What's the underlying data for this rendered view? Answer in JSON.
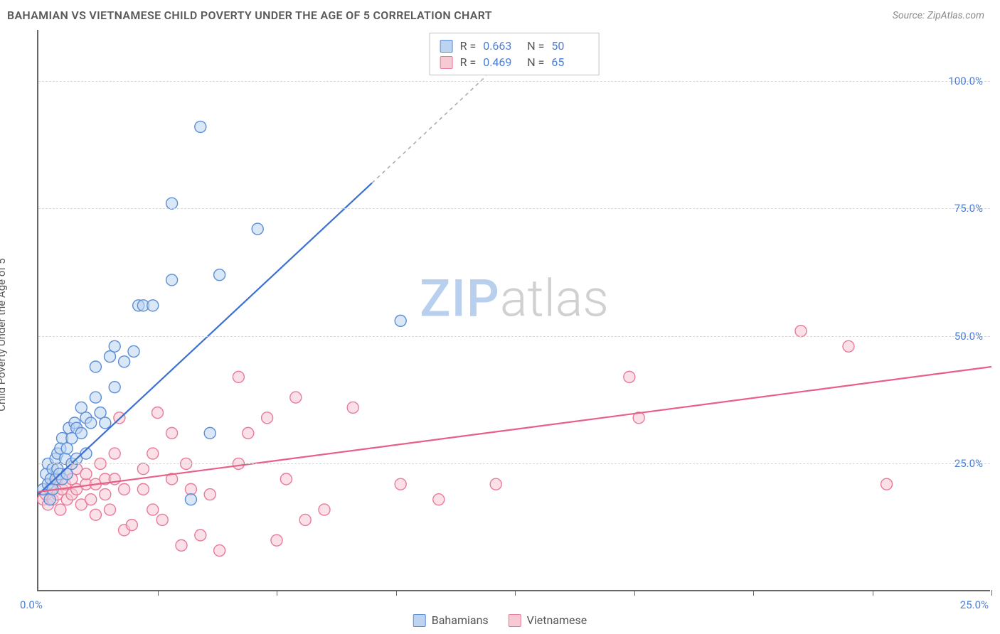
{
  "header": {
    "title": "BAHAMIAN VS VIETNAMESE CHILD POVERTY UNDER THE AGE OF 5 CORRELATION CHART",
    "source": "Source: ZipAtlas.com"
  },
  "axes": {
    "y_label": "Child Poverty Under the Age of 5",
    "y_ticks": [
      {
        "v": 25,
        "label": "25.0%"
      },
      {
        "v": 50,
        "label": "50.0%"
      },
      {
        "v": 75,
        "label": "75.0%"
      },
      {
        "v": 100,
        "label": "100.0%"
      }
    ],
    "x_ticks_at": [
      12.5,
      25,
      37.5,
      50,
      62.5,
      75,
      87.5,
      100
    ],
    "x_origin_label": "0.0%",
    "x_end_label": "25.0%",
    "xlim": [
      0,
      100
    ],
    "ylim": [
      0,
      110
    ]
  },
  "watermark": {
    "part1": "ZIP",
    "part2": "atlas"
  },
  "colors": {
    "series_a_fill": "#bcd4f0",
    "series_a_stroke": "#5b8ed6",
    "series_a_line": "#3b6fd1",
    "series_b_fill": "#f7c9d4",
    "series_b_stroke": "#e87a9a",
    "series_b_line": "#e85f87",
    "grid": "#d8d8d8",
    "axis": "#666666",
    "tick_text": "#4a7fd6",
    "body_text": "#5a5a5a"
  },
  "stats": {
    "rows": [
      {
        "swatch_fill": "#bcd4f0",
        "swatch_stroke": "#5b8ed6",
        "r_label": "R =",
        "r": "0.663",
        "n_label": "N =",
        "n": "50"
      },
      {
        "swatch_fill": "#f7c9d4",
        "swatch_stroke": "#e87a9a",
        "r_label": "R =",
        "r": "0.469",
        "n_label": "N =",
        "n": "65"
      }
    ]
  },
  "legend": {
    "items": [
      {
        "swatch_fill": "#bcd4f0",
        "swatch_stroke": "#5b8ed6",
        "label": "Bahamians"
      },
      {
        "swatch_fill": "#f7c9d4",
        "swatch_stroke": "#e87a9a",
        "label": "Vietnamese"
      }
    ]
  },
  "chart": {
    "type": "scatter",
    "marker_radius": 8,
    "marker_fill_opacity": 0.55,
    "line_width": 2.2,
    "series_a": {
      "name": "Bahamians",
      "trend": {
        "x1": 0,
        "y1": 19,
        "x2_solid": 35,
        "y2_solid": 80,
        "x2_dash": 47,
        "y2_dash": 101
      },
      "points": [
        [
          0.5,
          20
        ],
        [
          0.8,
          23
        ],
        [
          1,
          21
        ],
        [
          1,
          25
        ],
        [
          1.2,
          18
        ],
        [
          1.3,
          22
        ],
        [
          1.5,
          24
        ],
        [
          1.5,
          20
        ],
        [
          1.8,
          26
        ],
        [
          1.8,
          22
        ],
        [
          2,
          24
        ],
        [
          2,
          27
        ],
        [
          2.2,
          23
        ],
        [
          2.3,
          28
        ],
        [
          2.5,
          22
        ],
        [
          2.5,
          30
        ],
        [
          2.8,
          26
        ],
        [
          3,
          23
        ],
        [
          3,
          28
        ],
        [
          3.2,
          32
        ],
        [
          3.5,
          25
        ],
        [
          3.5,
          30
        ],
        [
          3.8,
          33
        ],
        [
          4,
          26
        ],
        [
          4,
          32
        ],
        [
          4.5,
          31
        ],
        [
          4.5,
          36
        ],
        [
          5,
          27
        ],
        [
          5,
          34
        ],
        [
          5.5,
          33
        ],
        [
          6,
          38
        ],
        [
          6,
          44
        ],
        [
          6.5,
          35
        ],
        [
          7,
          33
        ],
        [
          7.5,
          46
        ],
        [
          8,
          40
        ],
        [
          8,
          48
        ],
        [
          9,
          45
        ],
        [
          10,
          47
        ],
        [
          10.5,
          56
        ],
        [
          11,
          56
        ],
        [
          12,
          56
        ],
        [
          14,
          61
        ],
        [
          14,
          76
        ],
        [
          16,
          18
        ],
        [
          17,
          91
        ],
        [
          18,
          31
        ],
        [
          19,
          62
        ],
        [
          23,
          71
        ],
        [
          38,
          53
        ]
      ]
    },
    "series_b": {
      "name": "Vietnamese",
      "trend": {
        "x1": 0,
        "y1": 19.5,
        "x2": 100,
        "y2": 44
      },
      "points": [
        [
          0.5,
          18
        ],
        [
          0.8,
          19
        ],
        [
          1,
          17
        ],
        [
          1.2,
          20
        ],
        [
          1.5,
          18
        ],
        [
          1.5,
          21
        ],
        [
          2,
          19
        ],
        [
          2,
          22
        ],
        [
          2.3,
          16
        ],
        [
          2.5,
          20
        ],
        [
          2.8,
          21
        ],
        [
          3,
          18
        ],
        [
          3,
          23
        ],
        [
          3.5,
          19
        ],
        [
          3.5,
          22
        ],
        [
          4,
          20
        ],
        [
          4,
          24
        ],
        [
          4.5,
          17
        ],
        [
          5,
          21
        ],
        [
          5,
          23
        ],
        [
          5.5,
          18
        ],
        [
          6,
          21
        ],
        [
          6,
          15
        ],
        [
          6.5,
          25
        ],
        [
          7,
          19
        ],
        [
          7,
          22
        ],
        [
          7.5,
          16
        ],
        [
          8,
          22
        ],
        [
          8,
          27
        ],
        [
          8.5,
          34
        ],
        [
          9,
          20
        ],
        [
          9,
          12
        ],
        [
          9.8,
          13
        ],
        [
          11,
          20
        ],
        [
          11,
          24
        ],
        [
          12,
          27
        ],
        [
          12,
          16
        ],
        [
          12.5,
          35
        ],
        [
          13,
          14
        ],
        [
          14,
          22
        ],
        [
          14,
          31
        ],
        [
          15,
          9
        ],
        [
          15.5,
          25
        ],
        [
          16,
          20
        ],
        [
          17,
          11
        ],
        [
          18,
          19
        ],
        [
          19,
          8
        ],
        [
          21,
          42
        ],
        [
          21,
          25
        ],
        [
          22,
          31
        ],
        [
          24,
          34
        ],
        [
          25,
          10
        ],
        [
          26,
          22
        ],
        [
          27,
          38
        ],
        [
          28,
          14
        ],
        [
          30,
          16
        ],
        [
          33,
          36
        ],
        [
          38,
          21
        ],
        [
          42,
          18
        ],
        [
          48,
          21
        ],
        [
          62,
          42
        ],
        [
          63,
          34
        ],
        [
          80,
          51
        ],
        [
          85,
          48
        ],
        [
          89,
          21
        ]
      ]
    }
  }
}
